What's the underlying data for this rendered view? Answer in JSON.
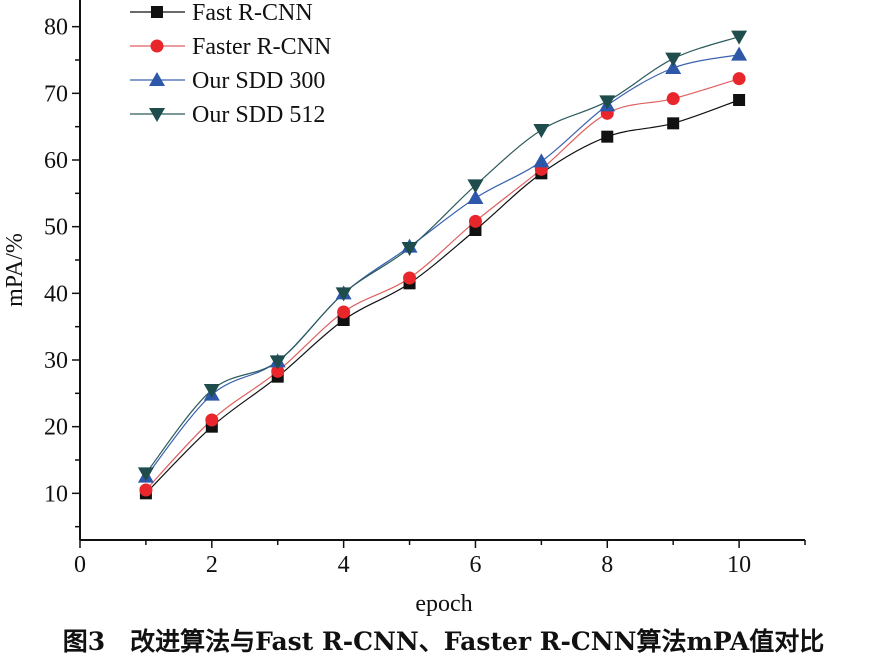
{
  "caption": "图3　改进算法与Fast R-CNN、Faster R-CNN算法mPA值对比",
  "chart_data": {
    "type": "line",
    "xlabel": "epoch",
    "ylabel": "mPA/%",
    "xlim": [
      0,
      11
    ],
    "ylim": [
      3,
      84
    ],
    "xticks": [
      0,
      2,
      4,
      6,
      8,
      10
    ],
    "yticks": [
      10,
      20,
      30,
      40,
      50,
      60,
      70,
      80
    ],
    "grid": false,
    "legend_position": "top-left",
    "x": [
      1,
      2,
      3,
      4,
      5,
      6,
      7,
      8,
      9,
      10
    ],
    "series": [
      {
        "name": "Fast R-CNN",
        "marker": "square",
        "color": "#111111",
        "line_color": "#111111",
        "values": [
          10.0,
          20.0,
          27.5,
          36.0,
          41.5,
          49.5,
          58.0,
          63.5,
          65.5,
          69.0
        ]
      },
      {
        "name": "Faster R-CNN",
        "marker": "circle",
        "color": "#e8262b",
        "line_color": "#e06060",
        "values": [
          10.5,
          21.0,
          28.3,
          37.2,
          42.3,
          50.8,
          58.6,
          67.0,
          69.2,
          72.2
        ]
      },
      {
        "name": "Our SDD 300",
        "marker": "triangle-up",
        "color": "#2d57a8",
        "line_color": "#3a62b0",
        "values": [
          12.5,
          24.8,
          29.8,
          40.0,
          47.0,
          54.3,
          59.8,
          68.2,
          73.8,
          75.8
        ]
      },
      {
        "name": "Our SDD 512",
        "marker": "triangle-down",
        "color": "#1f4d4d",
        "line_color": "#2c5b5b",
        "values": [
          13.0,
          25.5,
          29.8,
          40.0,
          46.8,
          56.2,
          64.5,
          68.8,
          75.2,
          78.5
        ]
      }
    ]
  }
}
